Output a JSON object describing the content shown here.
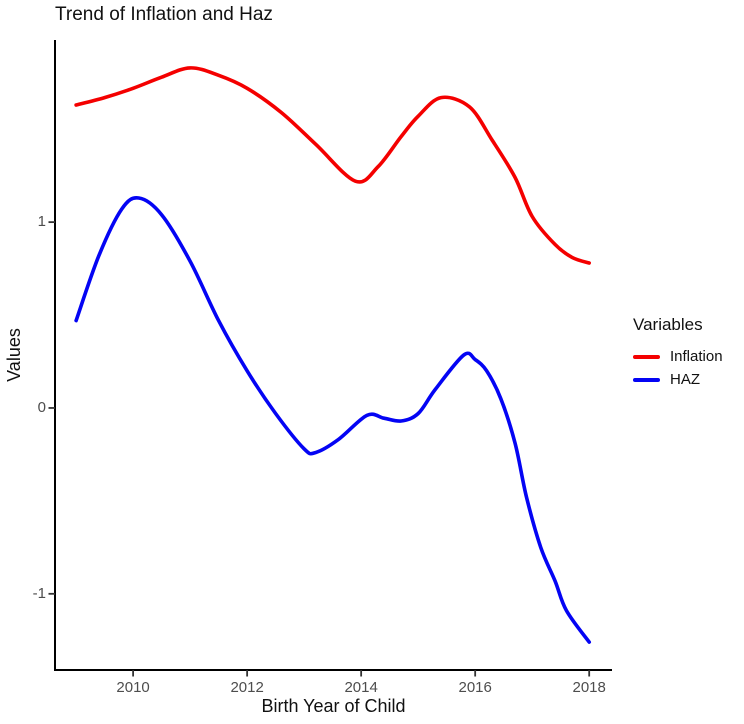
{
  "chart_data": {
    "type": "line",
    "title": "Trend of Inflation and Haz",
    "x_axis": {
      "title": "Birth Year of Child",
      "ticks": [
        2010,
        2012,
        2014,
        2016,
        2018
      ],
      "range": [
        2008.63,
        2018.4
      ]
    },
    "y_axis": {
      "title": "Values",
      "ticks": [
        1,
        0,
        -1
      ],
      "range": [
        -1.41,
        1.98
      ]
    },
    "grid": false,
    "legend": {
      "title": "Variables",
      "position": "right"
    },
    "series": [
      {
        "name": "Inflation",
        "color": "#f40000",
        "points": [
          [
            2009.0,
            1.63
          ],
          [
            2009.5,
            1.67
          ],
          [
            2010.0,
            1.72
          ],
          [
            2010.5,
            1.78
          ],
          [
            2011.0,
            1.83
          ],
          [
            2011.5,
            1.79
          ],
          [
            2012.0,
            1.72
          ],
          [
            2012.6,
            1.59
          ],
          [
            2013.2,
            1.42
          ],
          [
            2013.9,
            1.22
          ],
          [
            2014.3,
            1.3
          ],
          [
            2014.7,
            1.46
          ],
          [
            2015.0,
            1.57
          ],
          [
            2015.4,
            1.67
          ],
          [
            2015.9,
            1.62
          ],
          [
            2016.3,
            1.44
          ],
          [
            2016.7,
            1.24
          ],
          [
            2017.0,
            1.03
          ],
          [
            2017.4,
            0.88
          ],
          [
            2017.7,
            0.81
          ],
          [
            2018.0,
            0.78
          ]
        ]
      },
      {
        "name": "HAZ",
        "color": "#0404f4",
        "points": [
          [
            2009.0,
            0.47
          ],
          [
            2009.4,
            0.82
          ],
          [
            2009.8,
            1.07
          ],
          [
            2010.1,
            1.13
          ],
          [
            2010.5,
            1.04
          ],
          [
            2011.0,
            0.79
          ],
          [
            2011.5,
            0.47
          ],
          [
            2012.0,
            0.2
          ],
          [
            2012.5,
            -0.03
          ],
          [
            2013.0,
            -0.22
          ],
          [
            2013.2,
            -0.24
          ],
          [
            2013.6,
            -0.17
          ],
          [
            2014.1,
            -0.04
          ],
          [
            2014.4,
            -0.055
          ],
          [
            2014.7,
            -0.07
          ],
          [
            2015.0,
            -0.03
          ],
          [
            2015.3,
            0.1
          ],
          [
            2015.8,
            0.285
          ],
          [
            2016.0,
            0.26
          ],
          [
            2016.2,
            0.2
          ],
          [
            2016.45,
            0.05
          ],
          [
            2016.7,
            -0.19
          ],
          [
            2016.9,
            -0.48
          ],
          [
            2017.15,
            -0.75
          ],
          [
            2017.4,
            -0.93
          ],
          [
            2017.6,
            -1.09
          ],
          [
            2018.0,
            -1.26
          ]
        ]
      }
    ]
  }
}
